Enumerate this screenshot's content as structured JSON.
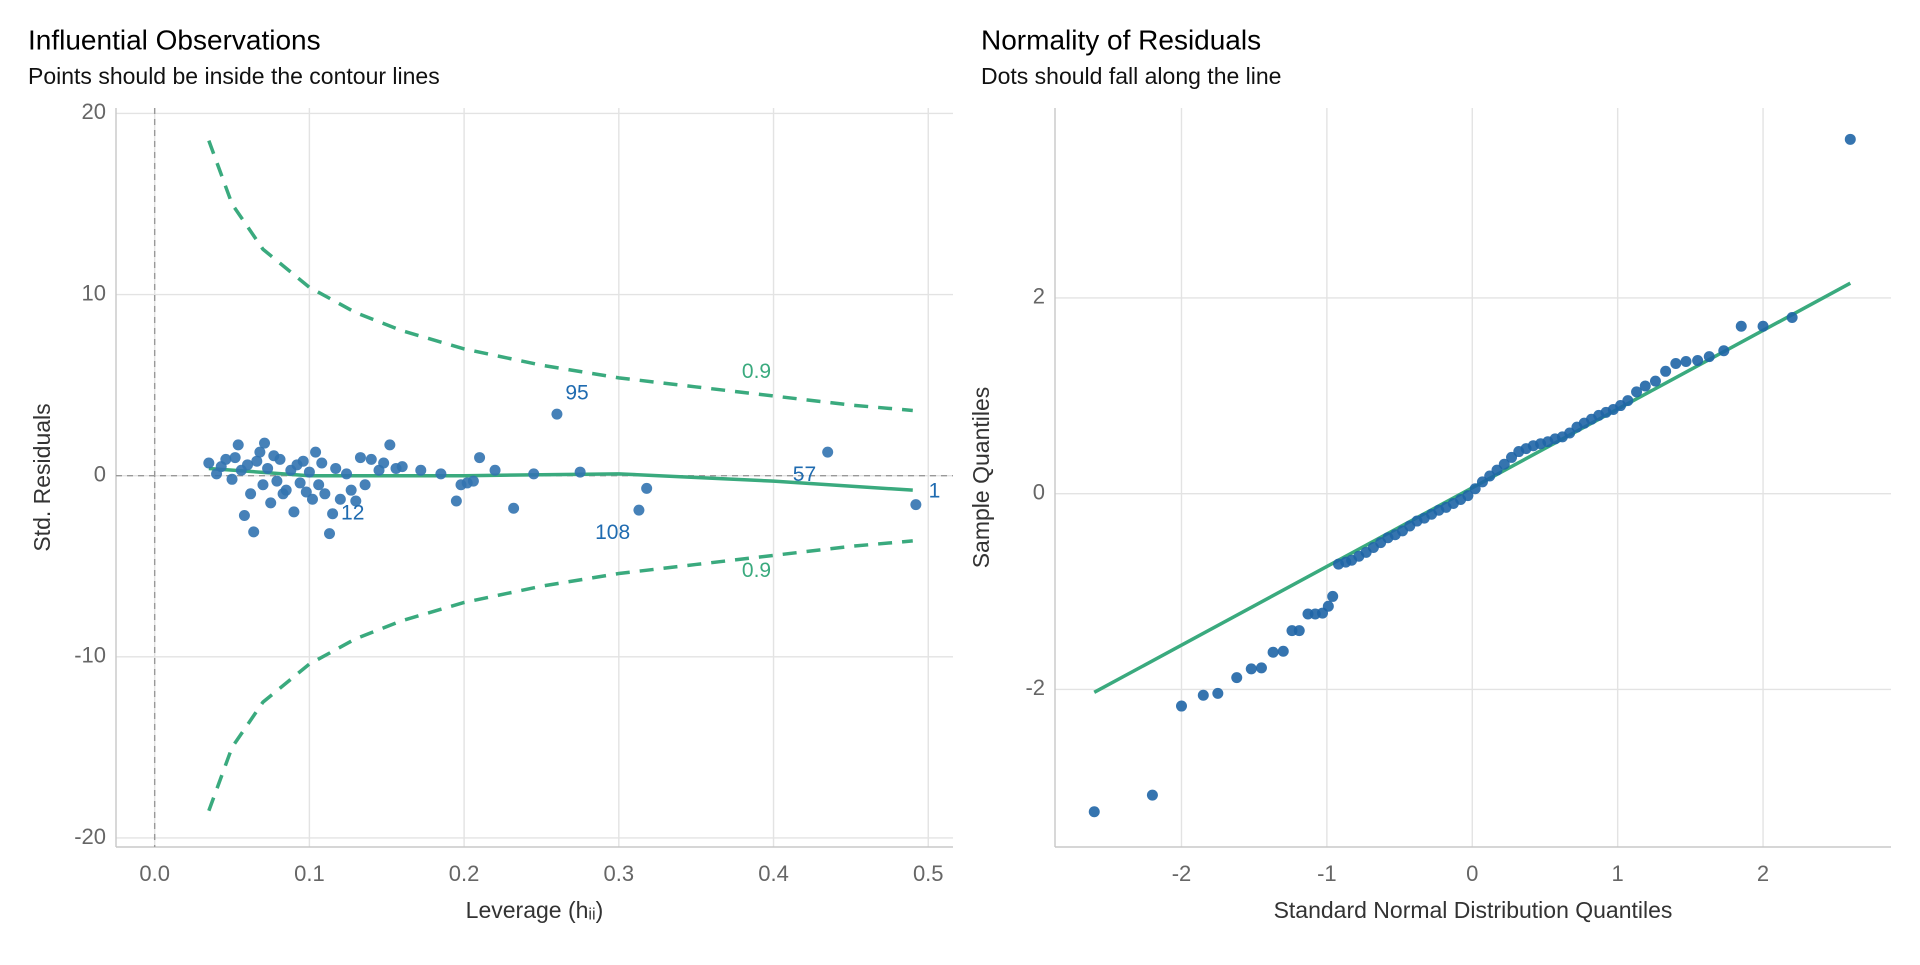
{
  "chart_data": [
    {
      "type": "scatter",
      "title": "Influential Observations",
      "subtitle": "Points should be inside the contour lines",
      "x_label": "Leverage (hᵢᵢ)",
      "y_label": "Std. Residuals",
      "xlim": [
        -0.025,
        0.516
      ],
      "ylim": [
        -20.5,
        20.3
      ],
      "xticks": [
        {
          "value": 0,
          "label": "0.0"
        },
        0.1,
        0.2,
        0.3,
        0.4,
        0.5
      ],
      "yticks": [
        -20,
        -10,
        0,
        10,
        20
      ],
      "grid": true,
      "hline": 0,
      "vline": 0,
      "points": {
        "color": "#3273b0",
        "x": [
          0.035,
          0.04,
          0.043,
          0.046,
          0.05,
          0.052,
          0.054,
          0.056,
          0.058,
          0.06,
          0.062,
          0.064,
          0.066,
          0.068,
          0.07,
          0.071,
          0.073,
          0.075,
          0.077,
          0.079,
          0.081,
          0.083,
          0.085,
          0.088,
          0.09,
          0.092,
          0.094,
          0.096,
          0.098,
          0.1,
          0.102,
          0.104,
          0.106,
          0.108,
          0.11,
          0.113,
          0.115,
          0.117,
          0.12,
          0.124,
          0.127,
          0.13,
          0.133,
          0.136,
          0.14,
          0.145,
          0.148,
          0.152,
          0.156,
          0.16,
          0.172,
          0.185,
          0.195,
          0.198,
          0.202,
          0.206,
          0.21,
          0.22,
          0.232,
          0.245,
          0.26,
          0.275,
          0.313,
          0.318,
          0.435,
          0.492
        ],
        "y": [
          0.7,
          0.1,
          0.5,
          0.9,
          -0.2,
          1.0,
          1.7,
          0.3,
          -2.2,
          0.6,
          -1.0,
          -3.1,
          0.8,
          1.3,
          -0.5,
          1.8,
          0.4,
          -1.5,
          1.1,
          -0.3,
          0.9,
          -1.0,
          -0.8,
          0.3,
          -2.0,
          0.6,
          -0.4,
          0.8,
          -0.9,
          0.2,
          -1.3,
          1.3,
          -0.5,
          0.7,
          -1.0,
          -3.2,
          -2.1,
          0.4,
          -1.3,
          0.1,
          -0.8,
          -1.4,
          1.0,
          -0.5,
          0.9,
          0.3,
          0.7,
          1.7,
          0.4,
          0.5,
          0.3,
          0.1,
          -1.4,
          -0.5,
          -0.4,
          -0.3,
          1.0,
          0.3,
          -1.8,
          0.1,
          3.4,
          0.2,
          -1.9,
          -0.7,
          1.3,
          -1.6
        ]
      },
      "lines": [
        {
          "color": "#3aaa7e",
          "dashed": false,
          "x": [
            0.035,
            0.1,
            0.2,
            0.3,
            0.4,
            0.49
          ],
          "y": [
            0.4,
            0.0,
            0.0,
            0.1,
            -0.3,
            -0.8
          ]
        },
        {
          "color": "#3aaa7e",
          "dashed": true,
          "x": [
            0.035,
            0.05,
            0.07,
            0.1,
            0.13,
            0.16,
            0.2,
            0.25,
            0.3,
            0.35,
            0.4,
            0.45,
            0.49
          ],
          "y": [
            18.5,
            15.0,
            12.5,
            10.4,
            9.0,
            8.0,
            7.0,
            6.1,
            5.4,
            4.9,
            4.4,
            3.9,
            3.6
          ]
        },
        {
          "color": "#3aaa7e",
          "dashed": true,
          "x": [
            0.035,
            0.05,
            0.07,
            0.1,
            0.13,
            0.16,
            0.2,
            0.25,
            0.3,
            0.35,
            0.4,
            0.45,
            0.49
          ],
          "y": [
            -18.5,
            -15.0,
            -12.5,
            -10.4,
            -9.0,
            -8.0,
            -7.0,
            -6.1,
            -5.4,
            -4.9,
            -4.4,
            -3.9,
            -3.6
          ]
        }
      ],
      "annotations": [
        {
          "text": "95",
          "x": 0.273,
          "y": 4.5,
          "color": "#1f6bb0"
        },
        {
          "text": "57",
          "x": 0.42,
          "y": 0.0,
          "color": "#1f6bb0"
        },
        {
          "text": "1",
          "x": 0.504,
          "y": -0.9,
          "color": "#1f6bb0"
        },
        {
          "text": "12",
          "x": 0.128,
          "y": -2.1,
          "color": "#1f6bb0"
        },
        {
          "text": "108",
          "x": 0.296,
          "y": -3.2,
          "color": "#1f6bb0"
        },
        {
          "text": "0.9",
          "x": 0.389,
          "y": 5.7,
          "color": "#3aaa7e"
        },
        {
          "text": "0.9",
          "x": 0.389,
          "y": -5.3,
          "color": "#3aaa7e"
        }
      ]
    },
    {
      "type": "scatter",
      "title": "Normality of Residuals",
      "subtitle": "Dots should fall along the line",
      "x_label": "Standard Normal Distribution Quantiles",
      "y_label": "Sample Quantiles",
      "xlim": [
        -2.87,
        2.88
      ],
      "ylim": [
        -3.61,
        3.94
      ],
      "xticks": [
        -2,
        -1,
        0,
        1,
        2
      ],
      "yticks": [
        -2,
        0,
        2
      ],
      "grid": true,
      "points": {
        "color": "#1f65a6",
        "x": [
          -2.6,
          -2.2,
          -2.0,
          -1.85,
          -1.75,
          -1.62,
          -1.52,
          -1.45,
          -1.37,
          -1.3,
          -1.24,
          -1.19,
          -1.13,
          -1.08,
          -1.03,
          -0.99,
          -0.96,
          -0.92,
          -0.87,
          -0.83,
          -0.78,
          -0.73,
          -0.68,
          -0.63,
          -0.58,
          -0.53,
          -0.48,
          -0.43,
          -0.38,
          -0.33,
          -0.28,
          -0.23,
          -0.18,
          -0.13,
          -0.08,
          -0.03,
          0.02,
          0.07,
          0.12,
          0.17,
          0.22,
          0.27,
          0.32,
          0.37,
          0.42,
          0.47,
          0.52,
          0.57,
          0.62,
          0.67,
          0.72,
          0.77,
          0.82,
          0.87,
          0.92,
          0.97,
          1.02,
          1.07,
          1.13,
          1.19,
          1.26,
          1.33,
          1.4,
          1.47,
          1.55,
          1.63,
          1.73,
          1.85,
          2.0,
          2.2,
          2.6
        ],
        "y": [
          -3.25,
          -3.08,
          -2.17,
          -2.06,
          -2.04,
          -1.88,
          -1.79,
          -1.78,
          -1.62,
          -1.61,
          -1.4,
          -1.4,
          -1.23,
          -1.23,
          -1.22,
          -1.15,
          -1.05,
          -0.72,
          -0.7,
          -0.68,
          -0.64,
          -0.6,
          -0.55,
          -0.5,
          -0.45,
          -0.42,
          -0.38,
          -0.33,
          -0.28,
          -0.25,
          -0.21,
          -0.17,
          -0.14,
          -0.1,
          -0.06,
          -0.02,
          0.05,
          0.12,
          0.18,
          0.24,
          0.3,
          0.37,
          0.43,
          0.46,
          0.49,
          0.51,
          0.53,
          0.56,
          0.58,
          0.62,
          0.68,
          0.72,
          0.76,
          0.8,
          0.83,
          0.86,
          0.9,
          0.95,
          1.04,
          1.1,
          1.15,
          1.25,
          1.33,
          1.35,
          1.36,
          1.4,
          1.46,
          1.71,
          1.71,
          1.8,
          3.62
        ]
      },
      "lines": [
        {
          "color": "#3aaa7e",
          "dashed": false,
          "x": [
            -2.6,
            2.6
          ],
          "y": [
            -2.03,
            2.15
          ]
        }
      ]
    }
  ]
}
